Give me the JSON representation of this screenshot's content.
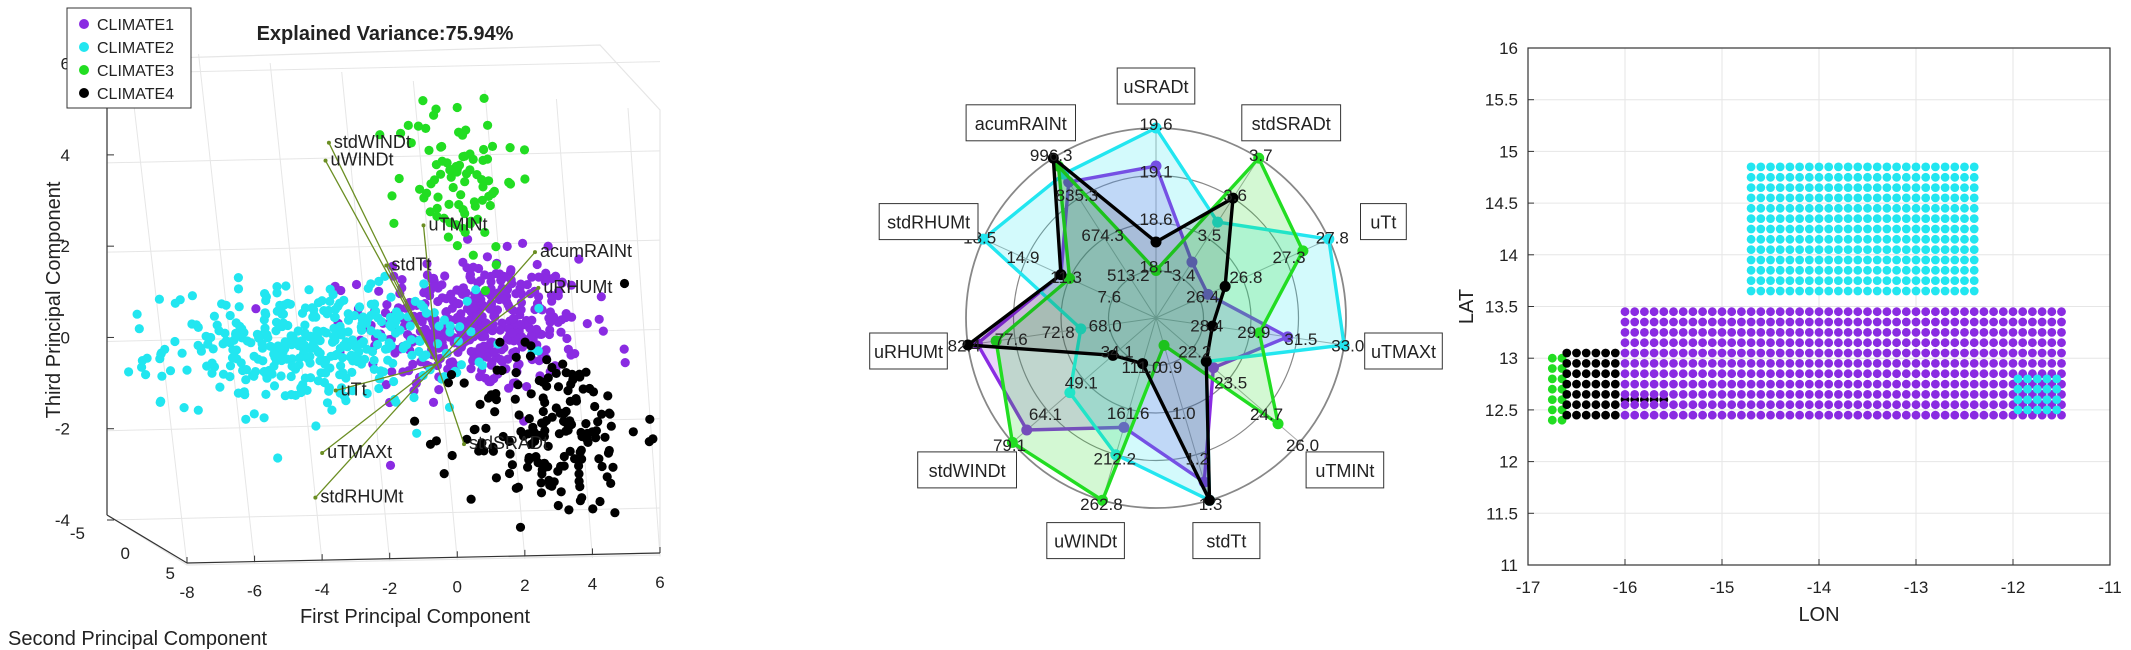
{
  "colors": {
    "CLIMATE1": "#8a2be2",
    "CLIMATE2": "#22e6f0",
    "CLIMATE3": "#22dd22",
    "CLIMATE4": "#000000",
    "biplot_line": "#6b8e23",
    "grid": "#e6e6e6",
    "axis": "#333333"
  },
  "chart_data": [
    {
      "type": "scatter",
      "title": "Explained Variance:75.94%",
      "xlabel": "First Principal Component",
      "ylabel": "Second Principal Component",
      "zlabel": "Third Principal Component",
      "xlim": [
        -8,
        6
      ],
      "ylim": [
        -5,
        5
      ],
      "zlim": [
        -4,
        6
      ],
      "xticks": [
        "-8",
        "-6",
        "-4",
        "-2",
        "0",
        "2",
        "4",
        "6"
      ],
      "yticks": [
        "-5",
        "0",
        "5"
      ],
      "zticks": [
        "-4",
        "-2",
        "0",
        "2",
        "4",
        "6"
      ],
      "grid": true,
      "legend": {
        "position": "top-left",
        "entries": [
          "CLIMATE1",
          "CLIMATE2",
          "CLIMATE3",
          "CLIMATE4"
        ]
      },
      "series": [
        {
          "name": "CLIMATE1",
          "center": [
            0.5,
            0.2
          ],
          "spread": [
            1.6,
            0.7
          ],
          "count": 420
        },
        {
          "name": "CLIMATE2",
          "center": [
            -4.2,
            -0.3
          ],
          "spread": [
            2.2,
            0.6
          ],
          "count": 380
        },
        {
          "name": "CLIMATE3",
          "center": [
            0.0,
            3.5
          ],
          "spread": [
            0.9,
            0.9
          ],
          "count": 90
        },
        {
          "name": "CLIMATE4",
          "center": [
            2.8,
            -2.2
          ],
          "spread": [
            1.3,
            0.9
          ],
          "count": 170
        }
      ],
      "loadings": [
        {
          "name": "stdWINDt",
          "x": -3.8,
          "z": 4.45
        },
        {
          "name": "uWINDt",
          "x": -3.9,
          "z": 4.05
        },
        {
          "name": "uTMINt",
          "x": -1.0,
          "z": 2.6
        },
        {
          "name": "acumRAINt",
          "x": 2.3,
          "z": 2.0
        },
        {
          "name": "uRHUMt",
          "x": 2.4,
          "z": 1.2
        },
        {
          "name": "stdTt",
          "x": -2.1,
          "z": 1.7
        },
        {
          "name": "uTt",
          "x": -3.6,
          "z": -1.1
        },
        {
          "name": "stdSRADt",
          "x": 0.2,
          "z": -2.3
        },
        {
          "name": "uTMAXt",
          "x": -4.0,
          "z": -2.5
        },
        {
          "name": "stdRHUMt",
          "x": -4.2,
          "z": -3.5
        }
      ]
    },
    {
      "type": "radar",
      "axes": [
        "uSRADt",
        "stdSRADt",
        "uTt",
        "uTMAXt",
        "uTMINt",
        "stdTt",
        "uWINDt",
        "stdWINDt",
        "uRHUMt",
        "stdRHUMt",
        "acumRAINt"
      ],
      "axis_ticks": [
        [
          "19.6",
          "19.1",
          "18.6",
          "18.1"
        ],
        [
          "3.7",
          "3.6",
          "3.5",
          "3.4"
        ],
        [
          "27.8",
          "27.3",
          "26.8",
          "26.4"
        ],
        [
          "33.0",
          "31.5",
          "29.9",
          "28.4"
        ],
        [
          "26.0",
          "24.7",
          "23.5",
          "22.2"
        ],
        [
          "1.3",
          "1.2",
          "1.0",
          "0.9"
        ],
        [
          "262.8",
          "212.2",
          "161.6",
          "111.0"
        ],
        [
          "79.1",
          "64.1",
          "49.1",
          "34.1"
        ],
        [
          "82.4",
          "77.6",
          "72.8",
          "68.0"
        ],
        [
          "18.5",
          "14.9",
          "11.3",
          "7.6"
        ],
        [
          "996.3",
          "835.3",
          "674.3",
          "513.2"
        ]
      ],
      "series": [
        {
          "name": "CLIMATE1",
          "values": [
            0.8,
            0.35,
            0.3,
            0.7,
            0.4,
            0.9,
            0.6,
            0.9,
            0.95,
            0.55,
            0.85
          ]
        },
        {
          "name": "CLIMATE2",
          "values": [
            1.0,
            0.6,
            1.0,
            1.0,
            0.35,
            1.0,
            0.75,
            0.6,
            0.4,
            1.0,
            0.9
          ]
        },
        {
          "name": "CLIMATE3",
          "values": [
            0.25,
            1.0,
            0.85,
            0.55,
            0.85,
            0.15,
            1.0,
            1.0,
            0.85,
            0.5,
            0.95
          ]
        },
        {
          "name": "CLIMATE4",
          "values": [
            0.4,
            0.75,
            0.4,
            0.3,
            0.35,
            1.0,
            0.25,
            0.3,
            1.0,
            0.55,
            1.0
          ]
        }
      ]
    },
    {
      "type": "scatter",
      "xlabel": "LON",
      "ylabel": "LAT",
      "xlim": [
        -17,
        -11
      ],
      "ylim": [
        11,
        16
      ],
      "xticks": [
        "-17",
        "-16",
        "-15",
        "-14",
        "-13",
        "-12",
        "-11"
      ],
      "yticks": [
        "11",
        "11.5",
        "12",
        "12.5",
        "13",
        "13.5",
        "14",
        "14.5",
        "15",
        "15.5",
        "16"
      ],
      "grid": true,
      "regions": [
        {
          "name": "CLIMATE3",
          "lon": [
            -16.75,
            -16.65
          ],
          "lat": [
            12.4,
            13.05
          ]
        },
        {
          "name": "CLIMATE4",
          "lon": [
            -16.6,
            -16.05
          ],
          "lat": [
            12.45,
            13.1
          ]
        },
        {
          "name": "CLIMATE4",
          "lon": [
            -16.0,
            -15.6
          ],
          "lat": [
            12.6,
            12.6
          ]
        },
        {
          "name": "CLIMATE1",
          "lon": [
            -16.0,
            -11.5
          ],
          "lat": [
            12.45,
            13.5
          ]
        },
        {
          "name": "CLIMATE2",
          "lon": [
            -14.7,
            -12.4
          ],
          "lat": [
            13.65,
            14.9
          ]
        },
        {
          "name": "CLIMATE2",
          "lon": [
            -11.95,
            -11.5
          ],
          "lat": [
            12.5,
            12.85
          ]
        }
      ]
    }
  ]
}
